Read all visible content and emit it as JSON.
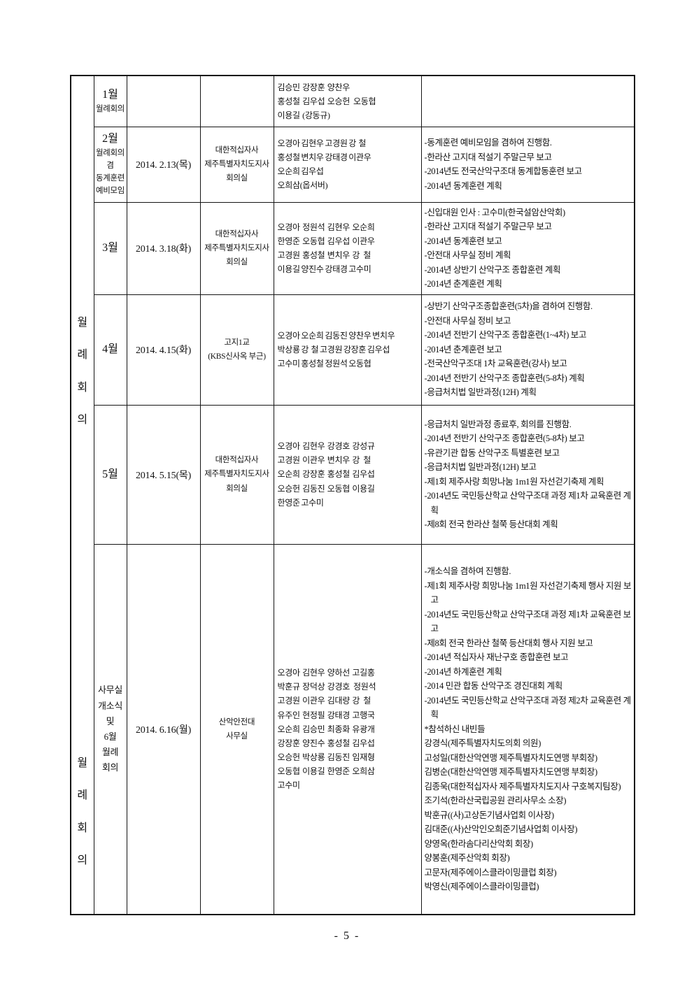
{
  "document": {
    "type": "meeting-minutes-table",
    "footer_page_number": "- 5 -",
    "side_label_top": "월례회의",
    "side_label_bottom": "월례회의"
  },
  "table": {
    "rows": [
      {
        "month_main": "1월",
        "month_sub": "월례회의",
        "date": "",
        "location": "",
        "attendees": "김승민  강장훈  양찬우\n홍성철  김우섭  오승헌   오동협\n이용길  (강동규)",
        "notes": []
      },
      {
        "month_main": "2월",
        "month_sub": "월례회의\n겸\n동계훈련\n예비모임",
        "date": "2014. 2.13(목)",
        "location": "대한적십자사\n제주특별자치도지사\n회의실",
        "attendees": "오경아 김현우 고경원 강  철\n홍성철 변치우 강태경 이관우\n오순희 김우섭\n오희삼(옵서버)",
        "notes": [
          "-동계훈련 예비모임을 겸하여 진행함.",
          "-한라산 고지대 적설기 주말근무 보고",
          "-2014년도 전국산악구조대 동계합동훈련 보고",
          "-2014년 동계훈련 계획"
        ]
      },
      {
        "month_main": "3월",
        "month_sub": "",
        "date": "2014. 3.18(화)",
        "location": "대한적십자사\n제주특별자치도지사\n회의실",
        "attendees": "오경아  정원석  김현우  오순희\n한영준  오동협  김우섭  이관우\n고경원  홍성철  변치우  강   철\n이용길 양진수 강태경 고수미",
        "notes": [
          "-신입대원 인사 : 고수미(한국설암산악회)",
          "-한라산 고지대 적설기 주말근무 보고",
          "-2014년 동계훈련 보고",
          "-안전대 사무실 정비 계획",
          "-2014년 상반기 산악구조 종합훈련  계획",
          "-2014년 춘계훈련 계획"
        ]
      },
      {
        "month_main": "4월",
        "month_sub": "",
        "date": "2014. 4.15(화)",
        "location": "고지1교\n(KBS신사옥 부근)",
        "attendees": "오경아 오순희 김동진 양찬우 변치우\n박상룡 강  철 고경원 강장훈 김우섭\n고수미 홍성철 정원석 오동협",
        "notes": [
          "-상반기 산악구조종합훈련(5차)을 겸하여 진행함.",
          "-안전대 사무실 정비 보고",
          "-2014년 전반기 산악구조 종합훈련(1~4차) 보고",
          "-2014년 춘계훈련 보고",
          "-전국산악구조대 1차 교육훈련(강사) 보고",
          "-2014년 전반기 산악구조 종합훈련(5-8차) 계획",
          "-응급처치법 일반과정(12H) 계획"
        ]
      },
      {
        "month_main": "5월",
        "month_sub": "",
        "date": "2014. 5.15(목)",
        "location": "대한적십자사\n제주특별자치도지사\n회의실",
        "attendees": "오경아  김현우  강경호  강성규\n고경원  이관우  변치우  강   철\n오순희  강장훈  홍성철  김우섭\n오승헌  김동진  오동협  이용길\n한영준 고수미",
        "notes": [
          "-응급처치 일반과정 종료후, 회의를 진행함.",
          "-2014년 전반기 산악구조 종합훈련(5-8차) 보고",
          "-유관기관 합동 산악구조 특별훈련 보고",
          "-응급처치법 일반과정(12H) 보고",
          "-제1회  제주사랑  희망나눔  1m1원  자선걷기축제 계획",
          "-2014년도  국민등산학교  산악구조대  과정  제1차 교육훈련 계획",
          "-제8회 전국 한라산 철쭉 등산대회 계획"
        ]
      },
      {
        "month_main": "",
        "month_sub": "사무실\n개소식\n및\n6월\n월례\n회의",
        "date": "2014. 6.16(월)",
        "location": "산악안전대\n사무실",
        "attendees": "오경아  김현우  양하선  고길홍\n박훈규  장덕상  강경호   정원석\n고경원  이관우  김대량  강   철\n유주인  현정필  강태경  고행국\n오순희  김승민  최종화  유광개\n강장훈  양진수  홍성철  김우섭\n오승헌  박상룡  김동진  임재형\n오동협  이용길  한영준  오희삼\n고수미",
        "notes": [
          "-개소식을 겸하여 진행함.",
          "-제1회 제주사랑 희망나눔 1m1원 자선걷기축제 행사 지원 보고",
          "-2014년도 국민등산학교 산악구조대 과정 제1차 교육훈련 보고",
          "-제8회 전국 한라산 철쭉 등산대회 행사 지원 보고",
          "-2014년 적십자사 재난구호 종합훈련 보고",
          "-2014년 하계훈련 계획",
          "-2014 민관 합동 산악구조 경진대회 계획",
          "-2014년도 국민등산학교 산악구조대 과정 제2차 교육훈련 계획",
          "*참석하신 내빈들",
          "강경식(제주특별자치도의회 의원)",
          "고성일(대한산악연맹 제주특별자치도연맹 부회장)",
          "김병순(대한산악연맹 제주특별자치도연맹 부회장)",
          "김종욱(대한적십자사 제주특별자치도지사 구호복지팀장)",
          "조기석(한라산국립공원 관리사무소 소장)",
          "박훈규((사)고상돈기념사업회 이사장)",
          "김대준((사)산악인오희준기념사업회 이사장)",
          "양영옥(한라솜다리산악회 회장)",
          "양봉훈(제주산악회 회장)",
          "고문자(제주에이스클라이밍클럽 회장)",
          "박영신(제주에이스클라이밍클럽)"
        ]
      }
    ]
  }
}
